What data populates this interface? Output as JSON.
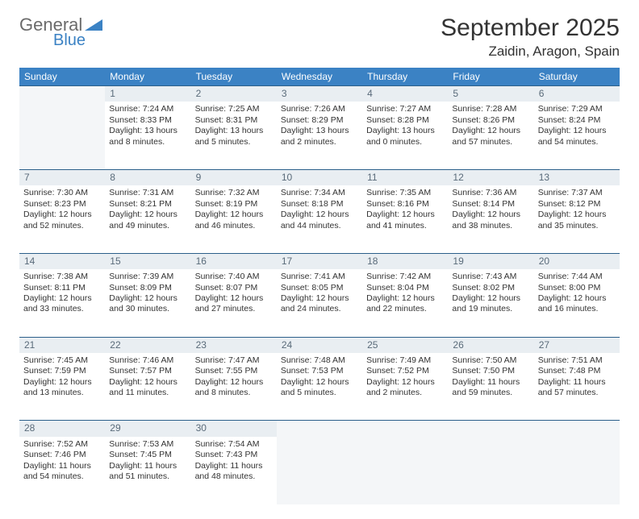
{
  "logo": {
    "line1": "General",
    "line2": "Blue",
    "text_color": "#6b6b6b",
    "accent_color": "#3b82c4"
  },
  "title": "September 2025",
  "subtitle": "Zaidin, Aragon, Spain",
  "header_bg": "#3b82c4",
  "header_text": "#ffffff",
  "daynum_bg": "#e9eef2",
  "daynum_color": "#5a6b7a",
  "row_border": "#2b5f8a",
  "empty_bg": "#f4f6f8",
  "body_fontsize": 10.5,
  "days": [
    "Sunday",
    "Monday",
    "Tuesday",
    "Wednesday",
    "Thursday",
    "Friday",
    "Saturday"
  ],
  "weeks": [
    {
      "nums": [
        "",
        "1",
        "2",
        "3",
        "4",
        "5",
        "6"
      ],
      "cells": [
        "",
        "Sunrise: 7:24 AM\nSunset: 8:33 PM\nDaylight: 13 hours and 8 minutes.",
        "Sunrise: 7:25 AM\nSunset: 8:31 PM\nDaylight: 13 hours and 5 minutes.",
        "Sunrise: 7:26 AM\nSunset: 8:29 PM\nDaylight: 13 hours and 2 minutes.",
        "Sunrise: 7:27 AM\nSunset: 8:28 PM\nDaylight: 13 hours and 0 minutes.",
        "Sunrise: 7:28 AM\nSunset: 8:26 PM\nDaylight: 12 hours and 57 minutes.",
        "Sunrise: 7:29 AM\nSunset: 8:24 PM\nDaylight: 12 hours and 54 minutes."
      ]
    },
    {
      "nums": [
        "7",
        "8",
        "9",
        "10",
        "11",
        "12",
        "13"
      ],
      "cells": [
        "Sunrise: 7:30 AM\nSunset: 8:23 PM\nDaylight: 12 hours and 52 minutes.",
        "Sunrise: 7:31 AM\nSunset: 8:21 PM\nDaylight: 12 hours and 49 minutes.",
        "Sunrise: 7:32 AM\nSunset: 8:19 PM\nDaylight: 12 hours and 46 minutes.",
        "Sunrise: 7:34 AM\nSunset: 8:18 PM\nDaylight: 12 hours and 44 minutes.",
        "Sunrise: 7:35 AM\nSunset: 8:16 PM\nDaylight: 12 hours and 41 minutes.",
        "Sunrise: 7:36 AM\nSunset: 8:14 PM\nDaylight: 12 hours and 38 minutes.",
        "Sunrise: 7:37 AM\nSunset: 8:12 PM\nDaylight: 12 hours and 35 minutes."
      ]
    },
    {
      "nums": [
        "14",
        "15",
        "16",
        "17",
        "18",
        "19",
        "20"
      ],
      "cells": [
        "Sunrise: 7:38 AM\nSunset: 8:11 PM\nDaylight: 12 hours and 33 minutes.",
        "Sunrise: 7:39 AM\nSunset: 8:09 PM\nDaylight: 12 hours and 30 minutes.",
        "Sunrise: 7:40 AM\nSunset: 8:07 PM\nDaylight: 12 hours and 27 minutes.",
        "Sunrise: 7:41 AM\nSunset: 8:05 PM\nDaylight: 12 hours and 24 minutes.",
        "Sunrise: 7:42 AM\nSunset: 8:04 PM\nDaylight: 12 hours and 22 minutes.",
        "Sunrise: 7:43 AM\nSunset: 8:02 PM\nDaylight: 12 hours and 19 minutes.",
        "Sunrise: 7:44 AM\nSunset: 8:00 PM\nDaylight: 12 hours and 16 minutes."
      ]
    },
    {
      "nums": [
        "21",
        "22",
        "23",
        "24",
        "25",
        "26",
        "27"
      ],
      "cells": [
        "Sunrise: 7:45 AM\nSunset: 7:59 PM\nDaylight: 12 hours and 13 minutes.",
        "Sunrise: 7:46 AM\nSunset: 7:57 PM\nDaylight: 12 hours and 11 minutes.",
        "Sunrise: 7:47 AM\nSunset: 7:55 PM\nDaylight: 12 hours and 8 minutes.",
        "Sunrise: 7:48 AM\nSunset: 7:53 PM\nDaylight: 12 hours and 5 minutes.",
        "Sunrise: 7:49 AM\nSunset: 7:52 PM\nDaylight: 12 hours and 2 minutes.",
        "Sunrise: 7:50 AM\nSunset: 7:50 PM\nDaylight: 11 hours and 59 minutes.",
        "Sunrise: 7:51 AM\nSunset: 7:48 PM\nDaylight: 11 hours and 57 minutes."
      ]
    },
    {
      "nums": [
        "28",
        "29",
        "30",
        "",
        "",
        "",
        ""
      ],
      "cells": [
        "Sunrise: 7:52 AM\nSunset: 7:46 PM\nDaylight: 11 hours and 54 minutes.",
        "Sunrise: 7:53 AM\nSunset: 7:45 PM\nDaylight: 11 hours and 51 minutes.",
        "Sunrise: 7:54 AM\nSunset: 7:43 PM\nDaylight: 11 hours and 48 minutes.",
        "",
        "",
        "",
        ""
      ]
    }
  ]
}
